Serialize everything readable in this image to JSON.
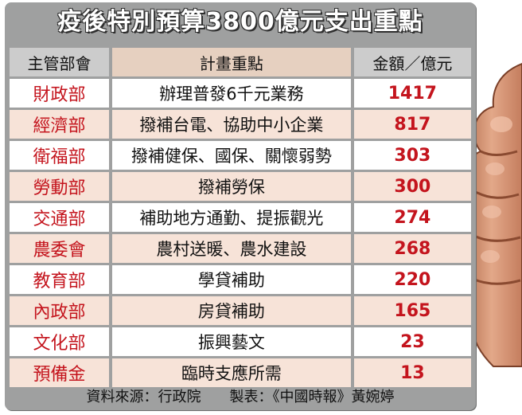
{
  "title": "疫後特別預算3800億元支出重點",
  "headers": [
    "主管部會",
    "計畫重點",
    "金額／億元"
  ],
  "rows": [
    {
      "dept": "財政部",
      "focus": "辦理普發6千元業務",
      "amount": "1417"
    },
    {
      "dept": "經濟部",
      "focus": "撥補台電、協助中小企業",
      "amount": "817"
    },
    {
      "dept": "衛福部",
      "focus": "撥補健保、國保、關懷弱勢",
      "amount": "303"
    },
    {
      "dept": "勞動部",
      "focus": "撥補勞保",
      "amount": "300"
    },
    {
      "dept": "交通部",
      "focus": "補助地方通勤、提振觀光",
      "amount": "274"
    },
    {
      "dept": "農委會",
      "focus": "農村送暖、農水建設",
      "amount": "268"
    },
    {
      "dept": "教育部",
      "focus": "學貸補助",
      "amount": "220"
    },
    {
      "dept": "內政部",
      "focus": "房貸補助",
      "amount": "165"
    },
    {
      "dept": "文化部",
      "focus": "振興藝文",
      "amount": "23"
    },
    {
      "dept": "預備金",
      "focus": "臨時支應所需",
      "amount": "13"
    }
  ],
  "footer": "資料來源：行政院　　製表：《中國時報》黃婉婷",
  "colors": {
    "frame": "#9fa0a0",
    "accent_red": "#c4141d",
    "stripe": "#f7e3d8",
    "header_mid": "#e6d0c0"
  },
  "decorations": [
    "hand-fingers-illustration"
  ]
}
